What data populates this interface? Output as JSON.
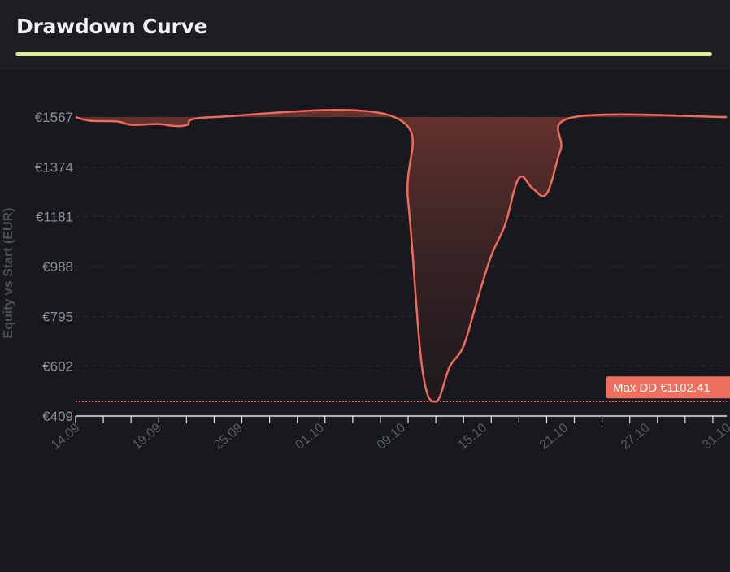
{
  "header": {
    "title": "Drawdown Curve"
  },
  "colors": {
    "accent": "#d9ec96",
    "line": "#f06a5c",
    "fill": "#5e2e2b",
    "badge": "#f0705f"
  },
  "chart_data": {
    "type": "area",
    "title": "Drawdown Curve",
    "xlabel": "",
    "ylabel": "Equity vs Start (EUR)",
    "y_ticks": [
      "€1567",
      "€1374",
      "€1181",
      "€988",
      "€795",
      "€602",
      "€409"
    ],
    "ylim": [
      409,
      1567
    ],
    "x_ticks": [
      "14.09",
      "19.09",
      "25.09",
      "01.10",
      "09.10",
      "15.10",
      "21.10",
      "27.10",
      "31.10"
    ],
    "x_range": [
      "2025-09-14",
      "2025-10-31"
    ],
    "grid": true,
    "series": [
      {
        "values": [
          {
            "x": "2025-09-14",
            "y": 1567
          },
          {
            "x": "2025-09-15",
            "y": 1553
          },
          {
            "x": "2025-09-17",
            "y": 1550
          },
          {
            "x": "2025-09-18",
            "y": 1537
          },
          {
            "x": "2025-09-20",
            "y": 1540
          },
          {
            "x": "2025-09-21",
            "y": 1533
          },
          {
            "x": "2025-09-22",
            "y": 1536
          },
          {
            "x": "2025-09-24",
            "y": 1567
          },
          {
            "x": "2025-10-07",
            "y": 1567
          },
          {
            "x": "2025-10-08",
            "y": 1240
          },
          {
            "x": "2025-10-09",
            "y": 600
          },
          {
            "x": "2025-10-10",
            "y": 465
          },
          {
            "x": "2025-10-11",
            "y": 600
          },
          {
            "x": "2025-10-12",
            "y": 680
          },
          {
            "x": "2025-10-13",
            "y": 860
          },
          {
            "x": "2025-10-14",
            "y": 1030
          },
          {
            "x": "2025-10-15",
            "y": 1150
          },
          {
            "x": "2025-10-16",
            "y": 1330
          },
          {
            "x": "2025-10-17",
            "y": 1290
          },
          {
            "x": "2025-10-18",
            "y": 1270
          },
          {
            "x": "2025-10-19",
            "y": 1440
          },
          {
            "x": "2025-10-20",
            "y": 1567
          },
          {
            "x": "2025-10-31",
            "y": 1567
          }
        ]
      }
    ],
    "peak_value": 1567,
    "max_drawdown_line": 465,
    "annotations": [
      {
        "label": "Max DD €1102.41",
        "y": 465
      }
    ]
  }
}
